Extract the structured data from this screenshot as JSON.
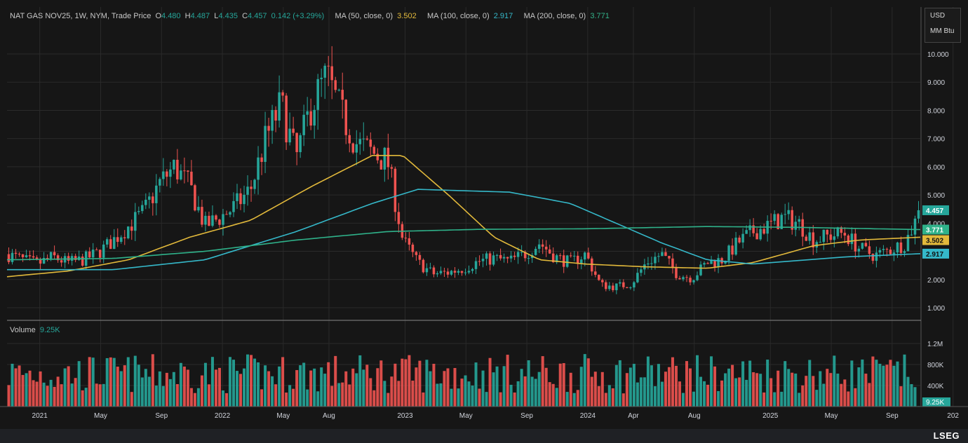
{
  "header": {
    "symbol": "NAT GAS NOV25, 1W, NYM, Trade Price",
    "o_label": "O",
    "o": "4.480",
    "h_label": "H",
    "h": "4.487",
    "l_label": "L",
    "l": "4.435",
    "c_label": "C",
    "c": "4.457",
    "chg": "0.142 (+3.29%)",
    "ma50_label": "MA (50, close, 0)",
    "ma50": "3.502",
    "ma100_label": "MA (100, close, 0)",
    "ma100": "2.917",
    "ma200_label": "MA (200, close, 0)",
    "ma200": "3.771"
  },
  "units": {
    "currency": "USD",
    "measure": "MM Btu"
  },
  "volume_panel": {
    "label": "Volume",
    "value": "9.25K"
  },
  "brand": {
    "name": "LSEG"
  },
  "colors": {
    "up": "#26a69a",
    "down": "#ef5350",
    "ma50": "#e2b93b",
    "ma100": "#35b8c9",
    "ma200": "#2fb28a",
    "background": "#161616",
    "grid": "#2a2a2a"
  },
  "chart_data": {
    "type": "candlestick",
    "title": "NAT GAS NOV25, 1W, NYM, Trade Price",
    "price_axis": {
      "ticks": [
        "10.000",
        "9.000",
        "8.000",
        "7.000",
        "6.000",
        "5.000",
        "4.000",
        "3.000",
        "2.000",
        "1.000"
      ],
      "ylim": [
        0.5,
        10.2
      ]
    },
    "volume_axis": {
      "ticks": [
        "1.2M",
        "800K",
        "400K"
      ],
      "ylim": [
        0,
        1450000
      ]
    },
    "time_axis": {
      "labels": [
        "2021",
        "May",
        "Sep",
        "2022",
        "May",
        "Aug",
        "2023",
        "May",
        "Sep",
        "2024",
        "Apr",
        "Aug",
        "2025",
        "May",
        "Sep",
        "202"
      ],
      "range": [
        "2020-11",
        "2025-11"
      ]
    },
    "price_anchors": [
      [
        "2020-11",
        2.9
      ],
      [
        "2020-12",
        2.7
      ],
      [
        "2021-01",
        2.55
      ],
      [
        "2021-02",
        2.8
      ],
      [
        "2021-03",
        2.6
      ],
      [
        "2021-04",
        2.7
      ],
      [
        "2021-05",
        2.95
      ],
      [
        "2021-06",
        3.4
      ],
      [
        "2021-07",
        3.9
      ],
      [
        "2021-08",
        4.4
      ],
      [
        "2021-09",
        5.4
      ],
      [
        "2021-10",
        6.0
      ],
      [
        "2021-11",
        5.3
      ],
      [
        "2021-12",
        3.9
      ],
      [
        "2022-01",
        4.2
      ],
      [
        "2022-02",
        4.6
      ],
      [
        "2022-03",
        5.2
      ],
      [
        "2022-04",
        7.0
      ],
      [
        "2022-05",
        8.2
      ],
      [
        "2022-06",
        6.3
      ],
      [
        "2022-07",
        8.2
      ],
      [
        "2022-08",
        9.2
      ],
      [
        "2022-09",
        7.8
      ],
      [
        "2022-10",
        6.8
      ],
      [
        "2022-11",
        6.5
      ],
      [
        "2022-12",
        6.2
      ],
      [
        "2023-01",
        3.4
      ],
      [
        "2023-02",
        2.6
      ],
      [
        "2023-03",
        2.2
      ],
      [
        "2023-04",
        2.25
      ],
      [
        "2023-05",
        2.4
      ],
      [
        "2023-06",
        2.65
      ],
      [
        "2023-07",
        2.75
      ],
      [
        "2023-08",
        2.65
      ],
      [
        "2023-09",
        2.9
      ],
      [
        "2023-10",
        3.3
      ],
      [
        "2023-11",
        2.8
      ],
      [
        "2023-12",
        2.6
      ],
      [
        "2024-01",
        2.9
      ],
      [
        "2024-02",
        1.8
      ],
      [
        "2024-03",
        1.75
      ],
      [
        "2024-04",
        1.85
      ],
      [
        "2024-05",
        2.6
      ],
      [
        "2024-06",
        2.9
      ],
      [
        "2024-07",
        2.2
      ],
      [
        "2024-08",
        2.05
      ],
      [
        "2024-09",
        2.6
      ],
      [
        "2024-10",
        2.7
      ],
      [
        "2024-11",
        3.3
      ],
      [
        "2024-12",
        3.7
      ],
      [
        "2025-01",
        3.9
      ],
      [
        "2025-02",
        4.2
      ],
      [
        "2025-03",
        4.0
      ],
      [
        "2025-04",
        3.4
      ],
      [
        "2025-05",
        3.55
      ],
      [
        "2025-06",
        3.65
      ],
      [
        "2025-07",
        3.1
      ],
      [
        "2025-08",
        2.85
      ],
      [
        "2025-09",
        3.05
      ],
      [
        "2025-10",
        3.3
      ],
      [
        "2025-11",
        4.457
      ]
    ],
    "ma50_anchors": [
      [
        "2020-11",
        2.1
      ],
      [
        "2021-03",
        2.3
      ],
      [
        "2021-07",
        2.7
      ],
      [
        "2021-11",
        3.5
      ],
      [
        "2022-03",
        4.1
      ],
      [
        "2022-07",
        5.3
      ],
      [
        "2022-11",
        6.4
      ],
      [
        "2023-01",
        6.4
      ],
      [
        "2023-04",
        5.0
      ],
      [
        "2023-07",
        3.5
      ],
      [
        "2023-10",
        2.7
      ],
      [
        "2024-01",
        2.55
      ],
      [
        "2024-05",
        2.45
      ],
      [
        "2024-09",
        2.4
      ],
      [
        "2024-12",
        2.6
      ],
      [
        "2025-04",
        3.2
      ],
      [
        "2025-07",
        3.4
      ],
      [
        "2025-11",
        3.502
      ]
    ],
    "ma100_anchors": [
      [
        "2020-11",
        2.35
      ],
      [
        "2021-06",
        2.35
      ],
      [
        "2021-12",
        2.7
      ],
      [
        "2022-06",
        3.7
      ],
      [
        "2022-11",
        4.7
      ],
      [
        "2023-02",
        5.2
      ],
      [
        "2023-08",
        5.1
      ],
      [
        "2023-12",
        4.7
      ],
      [
        "2024-03",
        4.0
      ],
      [
        "2024-06",
        3.3
      ],
      [
        "2024-09",
        2.7
      ],
      [
        "2024-12",
        2.55
      ],
      [
        "2025-06",
        2.8
      ],
      [
        "2025-11",
        2.917
      ]
    ],
    "ma200_anchors": [
      [
        "2020-11",
        2.7
      ],
      [
        "2021-06",
        2.75
      ],
      [
        "2021-12",
        3.0
      ],
      [
        "2022-06",
        3.4
      ],
      [
        "2022-12",
        3.7
      ],
      [
        "2023-06",
        3.78
      ],
      [
        "2024-01",
        3.8
      ],
      [
        "2024-09",
        3.88
      ],
      [
        "2025-03",
        3.85
      ],
      [
        "2025-11",
        3.771
      ]
    ],
    "last_values": {
      "price": "4.457",
      "ma200": "3.771",
      "ma50": "3.502",
      "ma100": "2.917",
      "volume": "9.25K"
    }
  }
}
